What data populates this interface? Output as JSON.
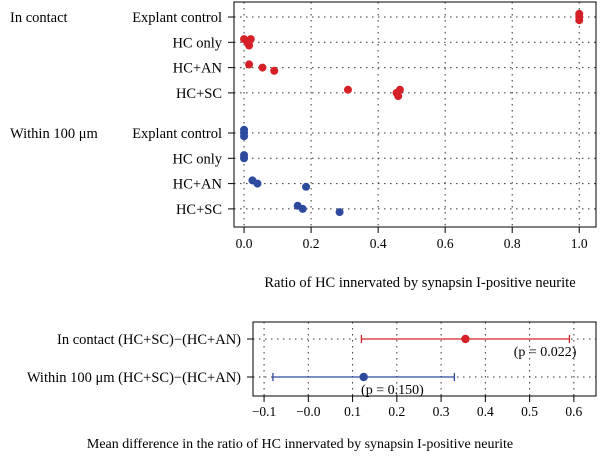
{
  "chart_data": [
    {
      "type": "scatter",
      "xlabel": "Ratio of HC innervated by synapsin I-positive neurite",
      "xlim": [
        -0.03,
        1.05
      ],
      "x_ticks": [
        "0.0",
        "0.2",
        "0.4",
        "0.6",
        "0.8",
        "1.0"
      ],
      "x_tick_values": [
        0.0,
        0.2,
        0.4,
        0.6,
        0.8,
        1.0
      ],
      "grid": true,
      "groups": [
        {
          "name": "In contact",
          "color": "#d62027",
          "rows": [
            {
              "label": "Explant control",
              "values": [
                1.0,
                1.0,
                1.0
              ]
            },
            {
              "label": "HC only",
              "values": [
                0.0,
                0.01,
                0.015,
                0.02
              ]
            },
            {
              "label": "HC+AN",
              "values": [
                0.015,
                0.055,
                0.09
              ]
            },
            {
              "label": "HC+SC",
              "values": [
                0.31,
                0.455,
                0.46,
                0.465
              ]
            }
          ]
        },
        {
          "name": "Within 100 μm",
          "color": "#2e4a9e",
          "rows": [
            {
              "label": "Explant control",
              "values": [
                0.0,
                0.0,
                0.0
              ]
            },
            {
              "label": "HC only",
              "values": [
                0.0,
                0.0
              ]
            },
            {
              "label": "HC+AN",
              "values": [
                0.025,
                0.04,
                0.185
              ]
            },
            {
              "label": "HC+SC",
              "values": [
                0.16,
                0.175,
                0.285
              ]
            }
          ]
        }
      ]
    },
    {
      "type": "scatter",
      "xlabel": "Mean difference in the ratio of HC innervated by synapsin I-positive neurite",
      "xlim": [
        -0.125,
        0.65
      ],
      "x_ticks": [
        "−0.1",
        "−0.0",
        "0.1",
        "0.2",
        "0.3",
        "0.4",
        "0.5",
        "0.6"
      ],
      "x_tick_values": [
        -0.1,
        0.0,
        0.1,
        0.2,
        0.3,
        0.4,
        0.5,
        0.6
      ],
      "grid": true,
      "series": [
        {
          "label": "In contact (HC+SC)−(HC+AN)",
          "color": "#d62027",
          "estimate": 0.355,
          "ci": [
            0.12,
            0.59
          ],
          "annotation": "(p = 0.022)"
        },
        {
          "label": "Within 100 μm (HC+SC)−(HC+AN)",
          "color": "#2e4a9e",
          "estimate": 0.125,
          "ci": [
            -0.08,
            0.33
          ],
          "annotation": "(p = 0.150)"
        }
      ]
    }
  ]
}
